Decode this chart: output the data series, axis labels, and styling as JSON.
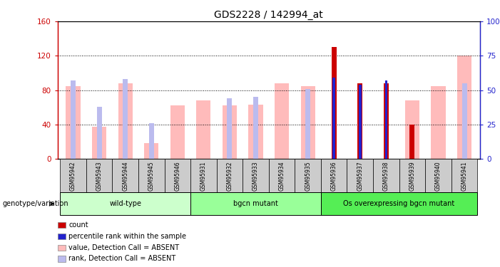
{
  "title": "GDS2228 / 142994_at",
  "samples": [
    "GSM95942",
    "GSM95943",
    "GSM95944",
    "GSM95945",
    "GSM95946",
    "GSM95931",
    "GSM95932",
    "GSM95933",
    "GSM95934",
    "GSM95935",
    "GSM95936",
    "GSM95937",
    "GSM95938",
    "GSM95939",
    "GSM95940",
    "GSM95941"
  ],
  "groups": [
    {
      "name": "wild-type",
      "color": "#ccffcc",
      "start": 0,
      "end": 4
    },
    {
      "name": "bgcn mutant",
      "color": "#99ff99",
      "start": 5,
      "end": 9
    },
    {
      "name": "Os overexpressing bgcn mutant",
      "color": "#55ee55",
      "start": 10,
      "end": 15
    }
  ],
  "value_absent": [
    85,
    37,
    88,
    18,
    62,
    68,
    62,
    63,
    88,
    85,
    0,
    0,
    0,
    68,
    85,
    120
  ],
  "rank_absent_pct": [
    57,
    38,
    58,
    26,
    0,
    0,
    44,
    45,
    0,
    51,
    0,
    0,
    0,
    0,
    0,
    55
  ],
  "count": [
    0,
    0,
    0,
    0,
    0,
    0,
    0,
    0,
    0,
    0,
    130,
    88,
    88,
    40,
    0,
    0
  ],
  "percentile": [
    0,
    0,
    0,
    0,
    0,
    0,
    0,
    0,
    0,
    0,
    59,
    54,
    57,
    0,
    0,
    0
  ],
  "ylim_left": [
    0,
    160
  ],
  "ylim_right": [
    0,
    100
  ],
  "yticks_left": [
    0,
    40,
    80,
    120,
    160
  ],
  "yticks_right": [
    0,
    25,
    50,
    75,
    100
  ],
  "ytick_labels_left": [
    "0",
    "40",
    "80",
    "120",
    "160"
  ],
  "ytick_labels_right": [
    "0",
    "25",
    "50",
    "75",
    "100%"
  ],
  "color_count": "#cc0000",
  "color_percentile": "#2222cc",
  "color_value_absent": "#ffbbbb",
  "color_rank_absent": "#bbbbee",
  "bg_sample_labels": "#cccccc",
  "left_axis_color": "#cc0000",
  "right_axis_color": "#2222cc",
  "legend_items": [
    {
      "label": "count",
      "color": "#cc0000"
    },
    {
      "label": "percentile rank within the sample",
      "color": "#2222cc"
    },
    {
      "label": "value, Detection Call = ABSENT",
      "color": "#ffbbbb"
    },
    {
      "label": "rank, Detection Call = ABSENT",
      "color": "#bbbbee"
    }
  ],
  "genotype_label": "genotype/variation"
}
